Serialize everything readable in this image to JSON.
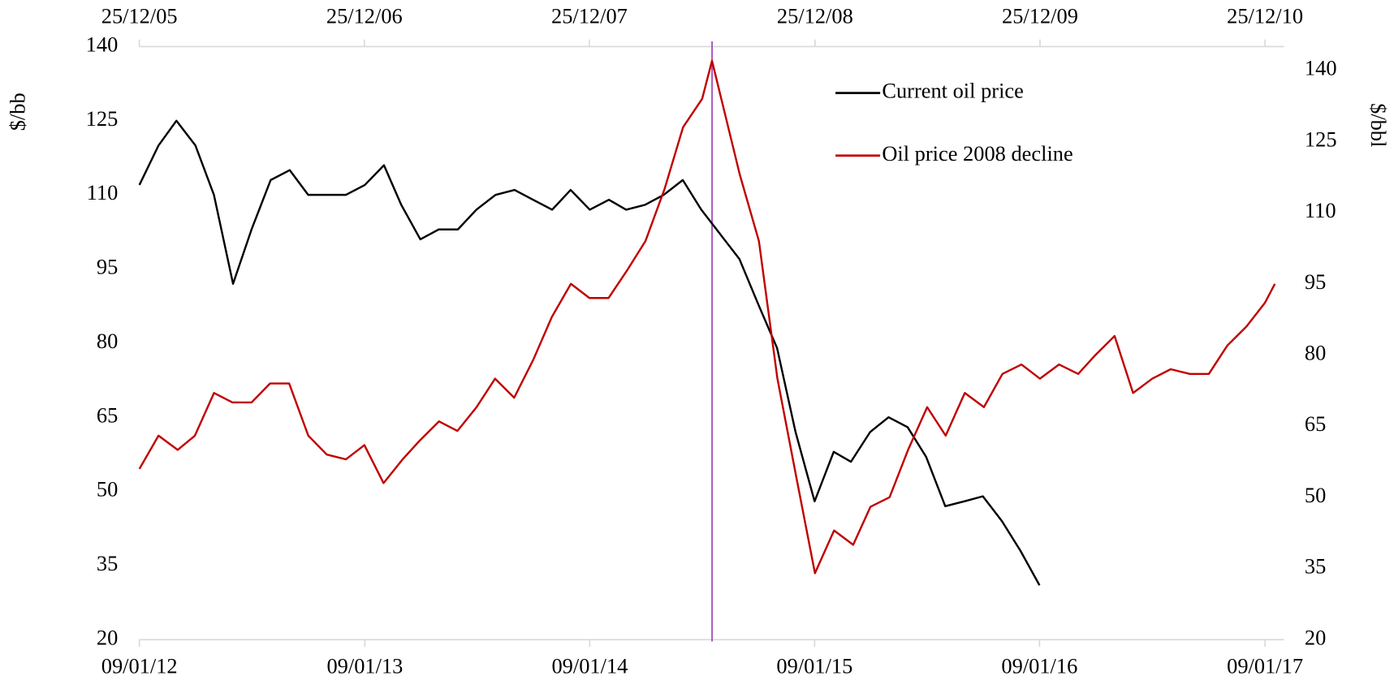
{
  "chart_data": {
    "type": "line",
    "y_label": "$/bb",
    "y2_label": "$/bbl",
    "xlim": [
      "2012-01-09",
      "2017-02-09"
    ],
    "xticks": [
      {
        "value": "2012-01-09",
        "label": "09/01/12"
      },
      {
        "value": "2013-01-09",
        "label": "09/01/13"
      },
      {
        "value": "2014-01-09",
        "label": "09/01/14"
      },
      {
        "value": "2015-01-09",
        "label": "09/01/15"
      },
      {
        "value": "2016-01-09",
        "label": "09/01/16"
      },
      {
        "value": "2017-01-09",
        "label": "09/01/17"
      }
    ],
    "x2lim": [
      "2005-12-25",
      "2011-01-25"
    ],
    "x2ticks": [
      {
        "value": "2005-12-25",
        "label": "25/12/05"
      },
      {
        "value": "2006-12-25",
        "label": "25/12/06"
      },
      {
        "value": "2007-12-25",
        "label": "25/12/07"
      },
      {
        "value": "2008-12-25",
        "label": "25/12/08"
      },
      {
        "value": "2009-12-25",
        "label": "25/12/09"
      },
      {
        "value": "2010-12-25",
        "label": "25/12/10"
      }
    ],
    "ylim": [
      20,
      140
    ],
    "yticks": [
      20,
      35,
      50,
      65,
      80,
      95,
      110,
      125,
      140
    ],
    "y2lim": [
      20,
      145
    ],
    "y2ticks": [
      20,
      35,
      50,
      65,
      80,
      95,
      110,
      125,
      140
    ],
    "vline": "2008-07-11",
    "vline_color": "#9b3fb5",
    "legend": "upper right",
    "series": [
      {
        "name": "Current oil price",
        "color": "#000000",
        "axis": "y",
        "xaxis": "x",
        "x": [
          "2012-01-09",
          "2012-02-09",
          "2012-03-09",
          "2012-04-09",
          "2012-05-09",
          "2012-06-09",
          "2012-07-09",
          "2012-08-09",
          "2012-09-09",
          "2012-10-09",
          "2012-11-09",
          "2012-12-09",
          "2013-01-09",
          "2013-02-09",
          "2013-03-09",
          "2013-04-09",
          "2013-05-09",
          "2013-06-09",
          "2013-07-09",
          "2013-08-09",
          "2013-09-09",
          "2013-10-09",
          "2013-11-09",
          "2013-12-09",
          "2014-01-09",
          "2014-02-09",
          "2014-03-09",
          "2014-04-09",
          "2014-05-09",
          "2014-06-09",
          "2014-07-09",
          "2014-08-09",
          "2014-09-09",
          "2014-10-09",
          "2014-11-09",
          "2014-12-09",
          "2015-01-09",
          "2015-02-09",
          "2015-03-09",
          "2015-04-09",
          "2015-05-09",
          "2015-06-09",
          "2015-07-09",
          "2015-08-09",
          "2015-09-09",
          "2015-10-09",
          "2015-11-09",
          "2015-12-09",
          "2016-01-09"
        ],
        "values": [
          112,
          120,
          125,
          120,
          110,
          92,
          103,
          113,
          115,
          110,
          110,
          110,
          112,
          116,
          108,
          101,
          103,
          103,
          107,
          110,
          111,
          109,
          107,
          111,
          107,
          109,
          107,
          108,
          110,
          113,
          107,
          102,
          97,
          88,
          79,
          62,
          48,
          58,
          56,
          62,
          65,
          63,
          57,
          47,
          48,
          49,
          44,
          38,
          31
        ]
      },
      {
        "name": "Oil price 2008 decline",
        "color": "#c00000",
        "axis": "y2",
        "xaxis": "x2",
        "x": [
          "2005-12-25",
          "2006-01-25",
          "2006-02-25",
          "2006-03-25",
          "2006-04-25",
          "2006-05-25",
          "2006-06-25",
          "2006-07-25",
          "2006-08-25",
          "2006-09-25",
          "2006-10-25",
          "2006-11-25",
          "2006-12-25",
          "2007-01-25",
          "2007-02-25",
          "2007-03-25",
          "2007-04-25",
          "2007-05-25",
          "2007-06-25",
          "2007-07-25",
          "2007-08-25",
          "2007-09-25",
          "2007-10-25",
          "2007-11-25",
          "2007-12-25",
          "2008-01-25",
          "2008-02-25",
          "2008-03-25",
          "2008-04-25",
          "2008-05-25",
          "2008-06-25",
          "2008-07-11",
          "2008-08-25",
          "2008-09-25",
          "2008-10-25",
          "2008-11-25",
          "2008-12-25",
          "2009-01-25",
          "2009-02-25",
          "2009-03-25",
          "2009-04-25",
          "2009-05-25",
          "2009-06-25",
          "2009-07-25",
          "2009-08-25",
          "2009-09-25",
          "2009-10-25",
          "2009-11-25",
          "2009-12-25",
          "2010-01-25",
          "2010-02-25",
          "2010-03-25",
          "2010-04-25",
          "2010-05-25",
          "2010-06-25",
          "2010-07-25",
          "2010-08-25",
          "2010-09-25",
          "2010-10-25",
          "2010-11-25",
          "2010-12-25",
          "2011-01-10"
        ],
        "values": [
          56,
          63,
          60,
          63,
          72,
          70,
          70,
          74,
          74,
          63,
          59,
          58,
          61,
          53,
          58,
          62,
          66,
          64,
          69,
          75,
          71,
          79,
          88,
          95,
          92,
          92,
          98,
          104,
          115,
          128,
          134,
          142,
          118,
          104,
          75,
          54,
          34,
          43,
          40,
          48,
          50,
          60,
          69,
          63,
          72,
          69,
          76,
          78,
          75,
          78,
          76,
          80,
          84,
          72,
          75,
          77,
          76,
          76,
          82,
          86,
          91,
          95
        ]
      }
    ]
  }
}
